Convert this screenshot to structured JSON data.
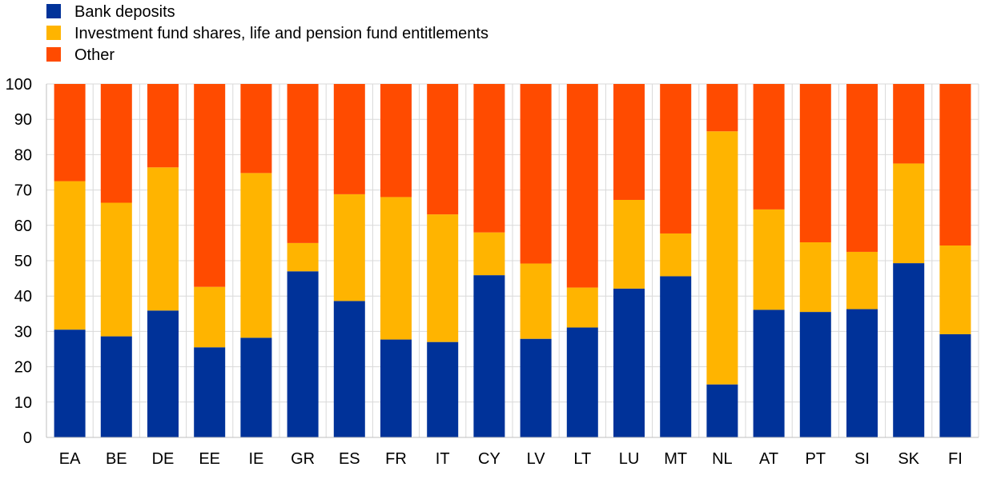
{
  "chart_data": {
    "type": "bar",
    "stacked": true,
    "categories": [
      "EA",
      "BE",
      "DE",
      "EE",
      "IE",
      "GR",
      "ES",
      "FR",
      "IT",
      "CY",
      "LV",
      "LT",
      "LU",
      "MT",
      "NL",
      "AT",
      "PT",
      "SI",
      "SK",
      "FI"
    ],
    "series": [
      {
        "name": "Bank deposits",
        "color": "#003299",
        "values": [
          30.5,
          28.6,
          35.9,
          25.5,
          28.2,
          47.0,
          38.6,
          27.7,
          27.0,
          45.9,
          27.9,
          31.1,
          42.1,
          45.6,
          15.0,
          36.1,
          35.5,
          36.3,
          49.3,
          29.2
        ]
      },
      {
        "name": "Investment fund shares, life and pension fund entitlements",
        "color": "#FFB400",
        "values": [
          42.0,
          37.8,
          40.5,
          17.1,
          46.6,
          8.0,
          30.2,
          40.3,
          36.1,
          12.1,
          21.3,
          11.3,
          25.1,
          12.1,
          71.6,
          28.4,
          19.7,
          16.2,
          28.2,
          25.1
        ]
      },
      {
        "name": "Other",
        "color": "#FF4B00",
        "values": [
          27.5,
          33.6,
          23.6,
          57.4,
          25.2,
          45.0,
          31.2,
          32.0,
          36.9,
          42.0,
          50.8,
          57.6,
          32.8,
          42.3,
          13.4,
          35.5,
          44.8,
          47.5,
          22.5,
          45.7
        ]
      }
    ],
    "ylim": [
      0,
      100
    ],
    "yticks": [
      0,
      10,
      20,
      30,
      40,
      50,
      60,
      70,
      80,
      90,
      100
    ],
    "grid": true,
    "legend_position": "top-left"
  }
}
